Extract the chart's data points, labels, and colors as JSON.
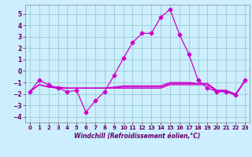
{
  "xlabel": "Windchill (Refroidissement éolien,°C)",
  "ylabel": "",
  "background_color": "#cceeff",
  "grid_color": "#99cccc",
  "line_color": "#cc00cc",
  "xlim": [
    -0.5,
    23.5
  ],
  "ylim": [
    -4.5,
    5.8
  ],
  "xticks": [
    0,
    1,
    2,
    3,
    4,
    5,
    6,
    7,
    8,
    9,
    10,
    11,
    12,
    13,
    14,
    15,
    16,
    17,
    18,
    19,
    20,
    21,
    22,
    23
  ],
  "yticks": [
    -4,
    -3,
    -2,
    -1,
    0,
    1,
    2,
    3,
    4,
    5
  ],
  "line1_x": [
    0,
    1,
    2,
    3,
    4,
    5,
    6,
    7,
    8,
    9,
    10,
    11,
    12,
    13,
    14,
    15,
    16,
    17,
    18,
    19,
    20,
    21,
    22,
    23
  ],
  "line1_y": [
    -1.8,
    -0.8,
    -1.2,
    -1.5,
    -1.8,
    -1.7,
    -3.6,
    -2.6,
    -1.8,
    -0.4,
    1.1,
    2.5,
    3.3,
    3.3,
    4.7,
    5.4,
    3.2,
    1.5,
    -0.8,
    -1.5,
    -1.8,
    -1.8,
    -2.1,
    -0.8
  ],
  "line2_x": [
    0,
    1,
    2,
    3,
    4,
    5,
    6,
    7,
    8,
    9,
    10,
    11,
    12,
    13,
    14,
    15,
    16,
    17,
    18,
    19,
    20,
    21,
    22,
    23
  ],
  "line2_y": [
    -1.8,
    -1.2,
    -1.4,
    -1.5,
    -1.5,
    -1.5,
    -1.5,
    -1.5,
    -1.5,
    -1.5,
    -1.5,
    -1.5,
    -1.5,
    -1.5,
    -1.5,
    -1.2,
    -1.2,
    -1.2,
    -1.2,
    -1.2,
    -1.8,
    -1.8,
    -2.1,
    -0.9
  ],
  "line3_x": [
    0,
    1,
    2,
    3,
    4,
    5,
    6,
    7,
    8,
    9,
    10,
    11,
    12,
    13,
    14,
    15,
    16,
    17,
    18,
    19,
    20,
    21,
    22,
    23
  ],
  "line3_y": [
    -1.8,
    -1.2,
    -1.4,
    -1.5,
    -1.5,
    -1.5,
    -1.5,
    -1.5,
    -1.5,
    -1.5,
    -1.4,
    -1.4,
    -1.4,
    -1.4,
    -1.4,
    -1.1,
    -1.1,
    -1.1,
    -1.1,
    -1.1,
    -1.7,
    -1.7,
    -2.1,
    -0.9
  ],
  "line4_x": [
    0,
    1,
    2,
    3,
    4,
    5,
    6,
    7,
    8,
    9,
    10,
    11,
    12,
    13,
    14,
    15,
    16,
    17,
    18,
    19,
    20,
    21,
    22,
    23
  ],
  "line4_y": [
    -1.8,
    -1.2,
    -1.4,
    -1.4,
    -1.5,
    -1.5,
    -1.5,
    -1.5,
    -1.5,
    -1.4,
    -1.3,
    -1.3,
    -1.3,
    -1.3,
    -1.3,
    -1.0,
    -1.0,
    -1.0,
    -1.1,
    -1.1,
    -1.7,
    -1.7,
    -2.0,
    -0.9
  ],
  "marker_style": "D",
  "marker_size": 2.5,
  "line_width": 0.9,
  "xlabel_fontsize": 5.5,
  "tick_fontsize": 5.0,
  "tick_color": "#660066",
  "xlabel_color": "#660066"
}
